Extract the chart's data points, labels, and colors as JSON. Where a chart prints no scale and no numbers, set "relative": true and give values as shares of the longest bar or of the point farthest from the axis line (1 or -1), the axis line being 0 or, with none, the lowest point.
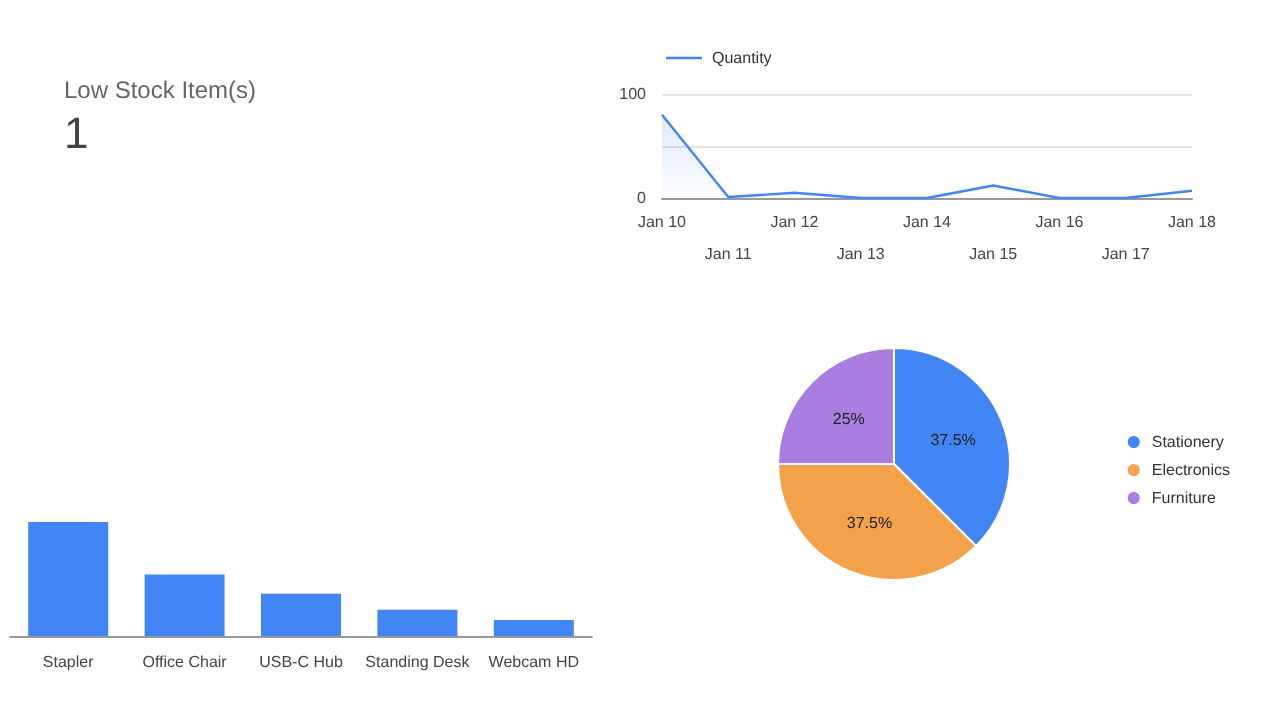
{
  "chart_data": [
    {
      "type": "other",
      "title": "Low Stock Item(s)",
      "values": [
        1
      ],
      "data_labels": true
    },
    {
      "type": "area",
      "categories": [
        "Jan 10",
        "Jan 11",
        "Jan 12",
        "Jan 13",
        "Jan 14",
        "Jan 15",
        "Jan 16",
        "Jan 17",
        "Jan 18"
      ],
      "series": [
        {
          "name": "Quantity",
          "color": "#4285f4",
          "values": [
            80,
            1,
            5,
            0,
            0,
            12,
            0,
            0,
            7
          ]
        }
      ],
      "ylim": [
        0,
        100
      ],
      "yticks": [
        0,
        {
          "value": 50,
          "label": null
        },
        100
      ],
      "grid": "y",
      "legend": "top left",
      "marker": "none"
    },
    {
      "type": "bar",
      "categories": [
        "Stapler",
        "Office Chair",
        "USB-C Hub",
        "Standing Desk",
        "Webcam HD"
      ],
      "values": [
        1,
        0.54,
        0.37,
        0.23,
        0.14
      ],
      "color": "#4285f4",
      "relative": true
    },
    {
      "type": "pie",
      "categories": [
        "Stationery",
        "Electronics",
        "Furniture"
      ],
      "values": [
        37.5,
        37.5,
        25
      ],
      "colors": [
        "#4285f4",
        "#f4a14b",
        "#a97ee0"
      ],
      "value_labels": [
        "37.5%",
        "37.5%",
        "25%"
      ],
      "legend": "right"
    }
  ]
}
